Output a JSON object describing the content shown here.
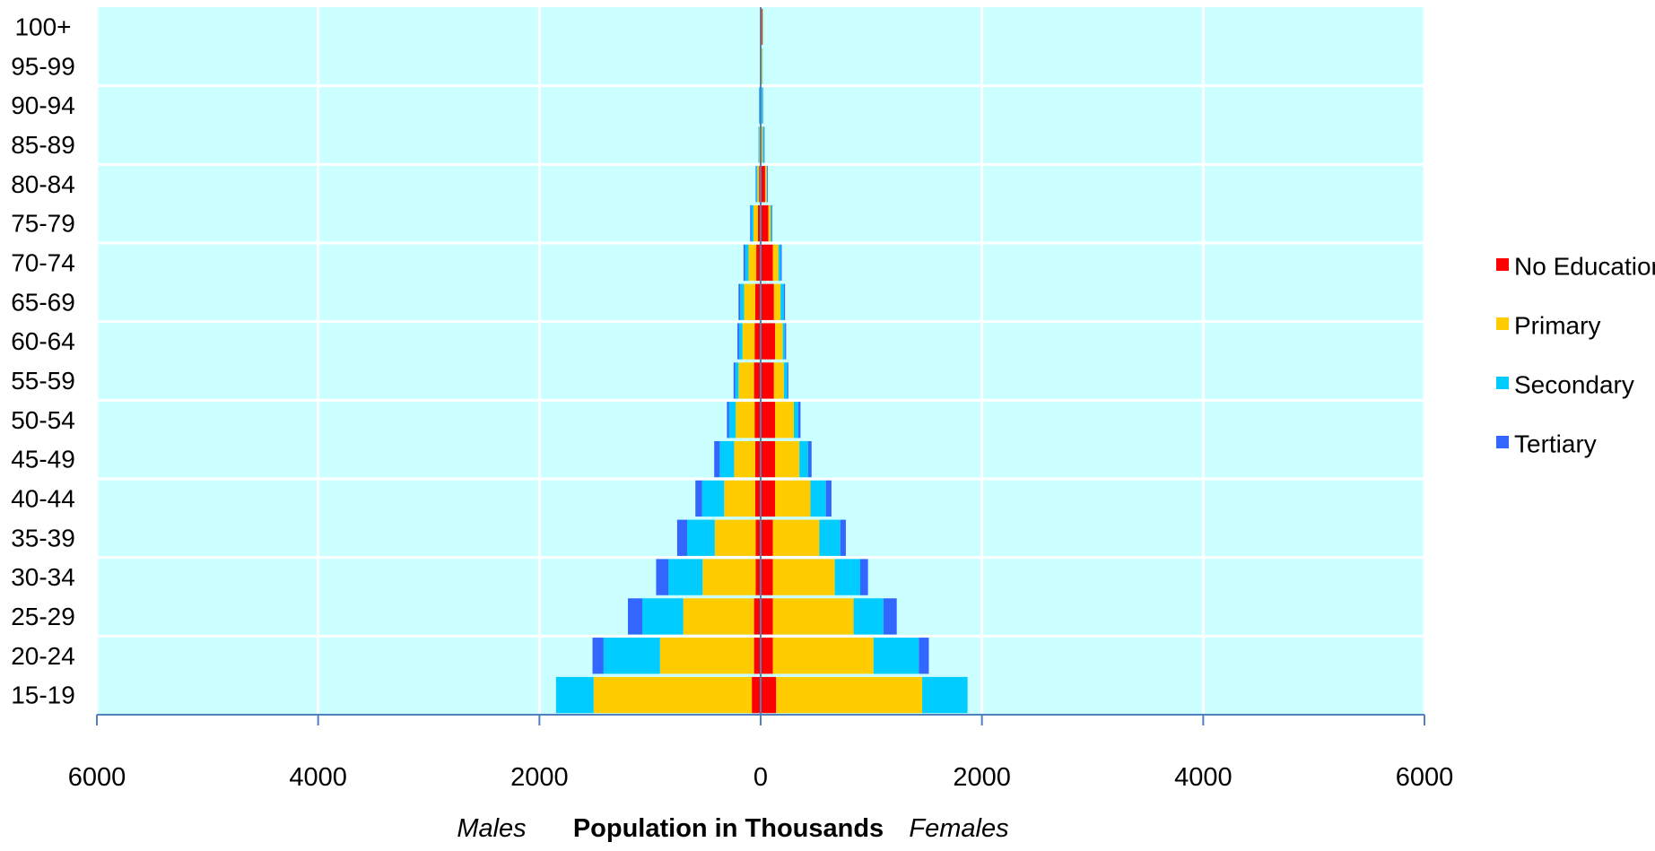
{
  "chart_data": {
    "type": "bar",
    "orientation": "horizontal",
    "layout": "population-pyramid",
    "categories": [
      "100+",
      "95-99",
      "90-94",
      "85-89",
      "80-84",
      "75-79",
      "70-74",
      "65-69",
      "60-64",
      "55-59",
      "50-54",
      "45-49",
      "40-44",
      "35-39",
      "30-34",
      "25-29",
      "20-24",
      "15-19"
    ],
    "xlabel": "Population in Thousands",
    "left_label": "Males",
    "right_label": "Females",
    "xlim": [
      -6000,
      6000
    ],
    "xticks": [
      {
        "value": -6000,
        "label": "6000"
      },
      {
        "value": -4000,
        "label": "4000"
      },
      {
        "value": -2000,
        "label": "2000"
      },
      {
        "value": 0,
        "label": "0"
      },
      {
        "value": 2000,
        "label": "2000"
      },
      {
        "value": 4000,
        "label": "4000"
      },
      {
        "value": 6000,
        "label": "6000"
      }
    ],
    "grid": true,
    "legend_position": "right",
    "series": [
      {
        "name": "No Education",
        "color": "#ff0000",
        "males": [
          2,
          2,
          3,
          5,
          15,
          25,
          40,
          50,
          55,
          60,
          55,
          50,
          50,
          45,
          45,
          60,
          60,
          80
        ],
        "females": [
          15,
          5,
          5,
          10,
          40,
          70,
          110,
          120,
          130,
          120,
          130,
          130,
          130,
          110,
          110,
          110,
          110,
          140
        ]
      },
      {
        "name": "Primary",
        "color": "#ffcc00",
        "males": [
          2,
          3,
          5,
          8,
          15,
          40,
          70,
          100,
          110,
          140,
          170,
          190,
          280,
          370,
          480,
          640,
          850,
          1430
        ],
        "females": [
          5,
          10,
          5,
          10,
          15,
          20,
          50,
          60,
          70,
          90,
          170,
          220,
          320,
          420,
          560,
          730,
          910,
          1320
        ]
      },
      {
        "name": "Secondary",
        "color": "#00ccff",
        "males": [
          2,
          2,
          5,
          5,
          10,
          20,
          30,
          35,
          30,
          30,
          60,
          130,
          200,
          250,
          310,
          370,
          510,
          340
        ],
        "females": [
          2,
          3,
          10,
          10,
          5,
          10,
          20,
          30,
          20,
          30,
          40,
          80,
          140,
          190,
          230,
          270,
          410,
          410
        ]
      },
      {
        "name": "Tertiary",
        "color": "#3366ff",
        "males": [
          0,
          0,
          2,
          2,
          5,
          10,
          15,
          15,
          15,
          15,
          20,
          50,
          60,
          90,
          110,
          130,
          100,
          0
        ],
        "females": [
          0,
          0,
          2,
          5,
          5,
          5,
          10,
          10,
          10,
          10,
          20,
          30,
          50,
          50,
          70,
          120,
          90,
          0
        ]
      }
    ]
  }
}
